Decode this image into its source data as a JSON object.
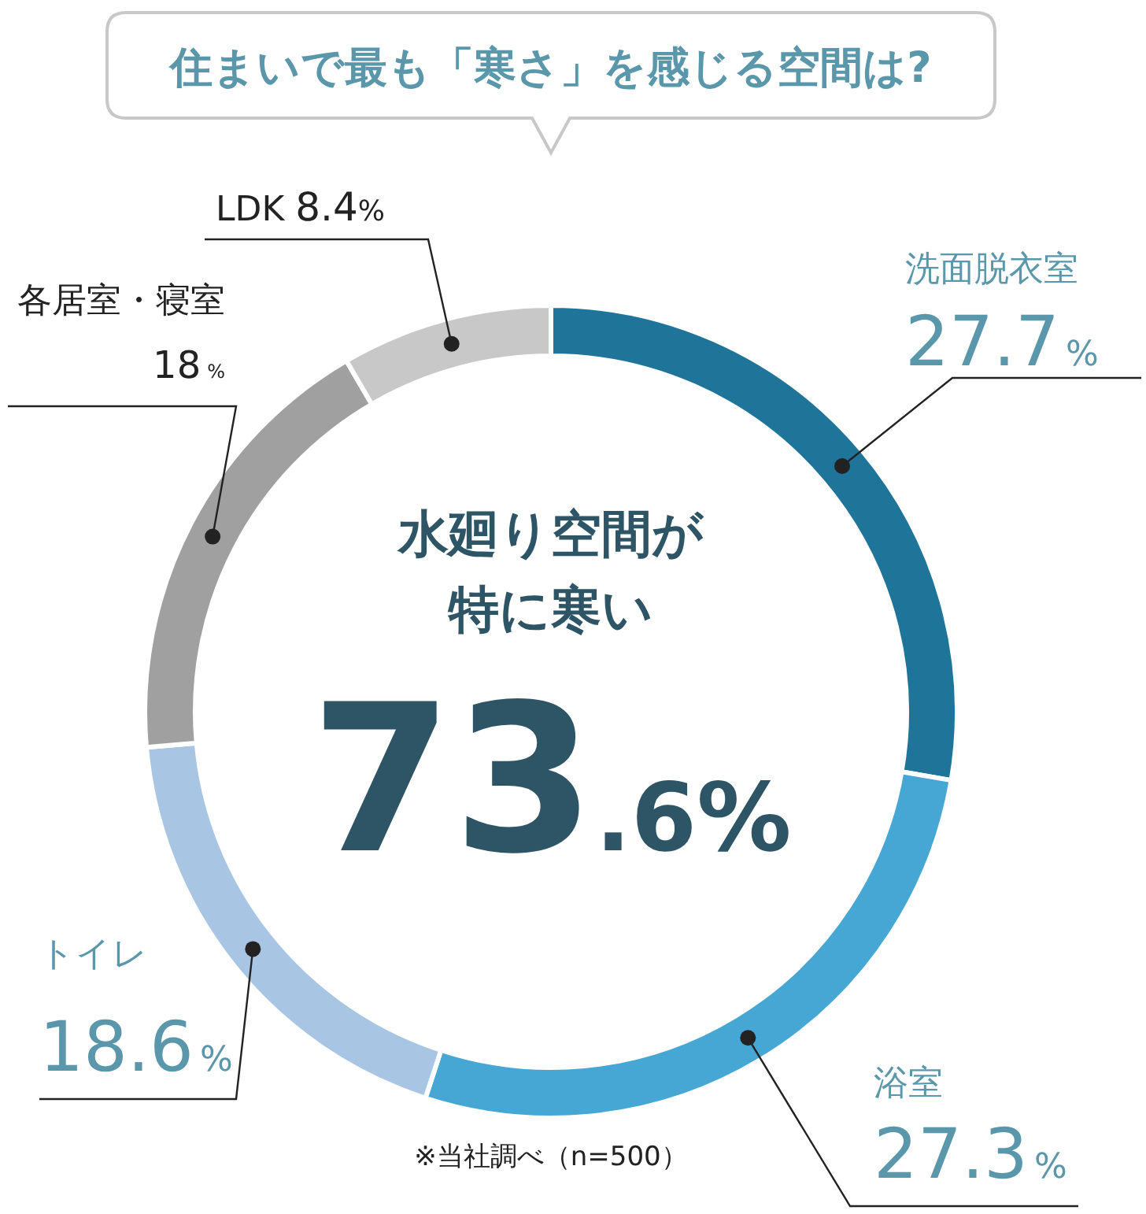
{
  "chart_data": {
    "type": "donut",
    "title": "住まいで最も「寒さ」を感じる空間は?",
    "categories": [
      "洗面脱衣室",
      "浴室",
      "トイレ",
      "各居室・寝室",
      "LDK"
    ],
    "values": [
      27.7,
      27.3,
      18.6,
      18,
      8.4
    ],
    "colors": [
      "#1f7499",
      "#47a7d4",
      "#a8c6e4",
      "#a0a0a0",
      "#c8c8c8"
    ],
    "value_labels": [
      "27.7%",
      "27.3%",
      "18.6%",
      "18%",
      "8.4%"
    ],
    "annotations": [
      "水廻り空間が特に寒い",
      "73.6%",
      "※当社調べ（n=500）"
    ]
  }
}
